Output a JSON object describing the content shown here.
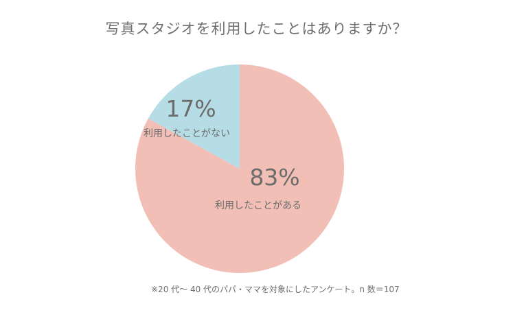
{
  "title": "写真スタジオを利用したことはありますか？",
  "note": "※20 代〜 40 代のパパ・ママを対象にしたアンケート。n 数＝107",
  "chart_data": {
    "type": "pie",
    "title": "写真スタジオを利用したことはありますか？",
    "slices": [
      {
        "label": "利用したことがある",
        "value": 83,
        "value_label": "83%",
        "color": "#f1bfb6"
      },
      {
        "label": "利用したことがない",
        "value": 17,
        "value_label": "17%",
        "color": "#b6dde5"
      }
    ],
    "start": "12 o'clock",
    "direction": "clockwise"
  }
}
